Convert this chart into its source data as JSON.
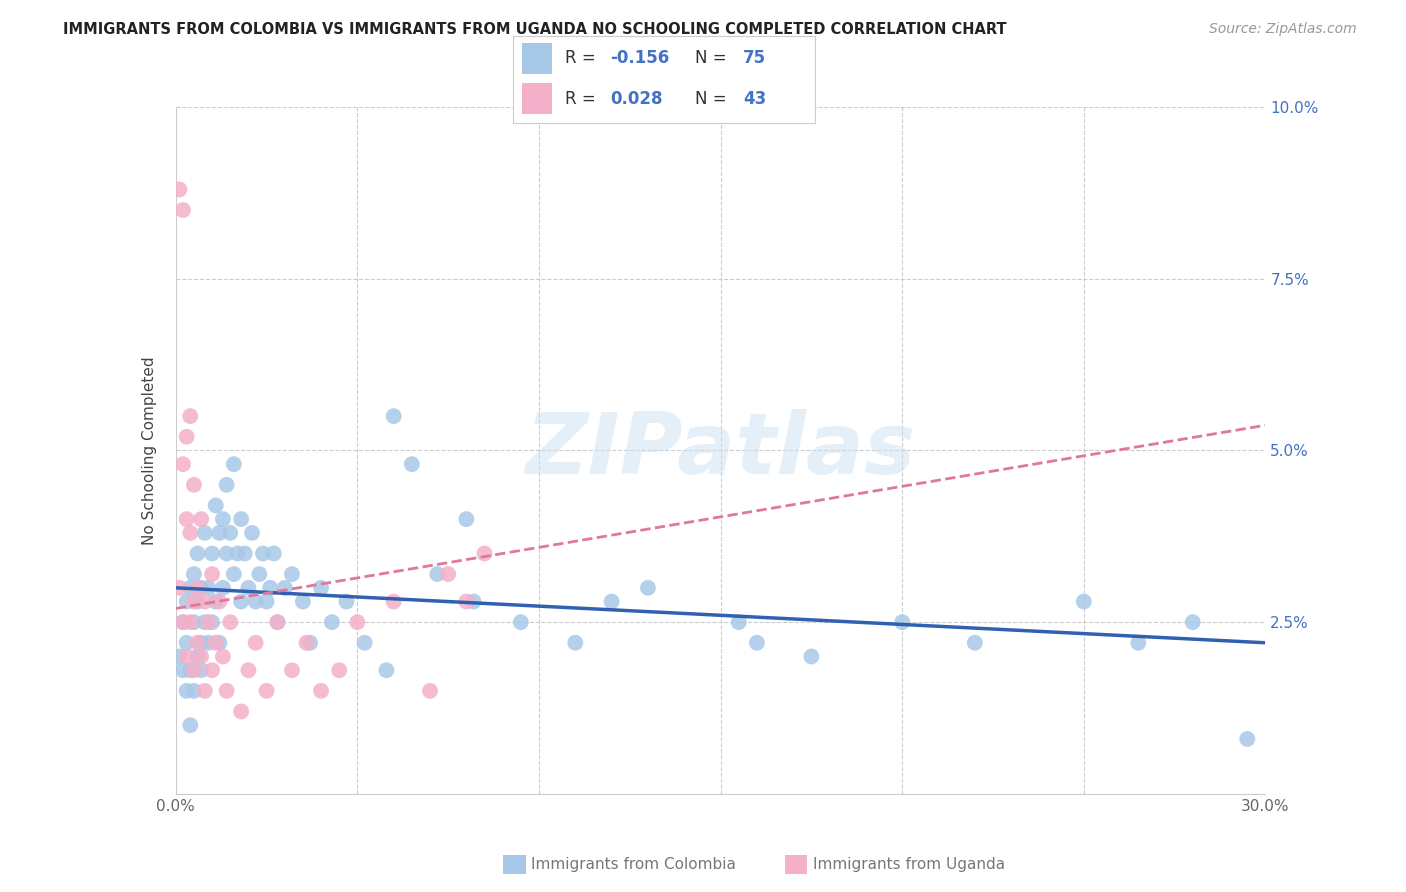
{
  "title": "IMMIGRANTS FROM COLOMBIA VS IMMIGRANTS FROM UGANDA NO SCHOOLING COMPLETED CORRELATION CHART",
  "source": "Source: ZipAtlas.com",
  "xlabel_colombia": "Immigrants from Colombia",
  "xlabel_uganda": "Immigrants from Uganda",
  "ylabel": "No Schooling Completed",
  "xlim": [
    0.0,
    0.3
  ],
  "ylim": [
    0.0,
    0.1
  ],
  "xticks": [
    0.0,
    0.05,
    0.1,
    0.15,
    0.2,
    0.25,
    0.3
  ],
  "yticks": [
    0.0,
    0.025,
    0.05,
    0.075,
    0.1
  ],
  "colombia_color": "#a8c8e8",
  "uganda_color": "#f4b0c8",
  "trend_colombia_color": "#3060b0",
  "trend_uganda_color": "#e07898",
  "colombia_R": -0.156,
  "colombia_N": 75,
  "uganda_R": 0.028,
  "uganda_N": 43,
  "watermark": "ZIPatlas",
  "right_axis_color": "#4472c4",
  "grid_color": "#cccccc",
  "colombia_x": [
    0.001,
    0.002,
    0.002,
    0.003,
    0.003,
    0.003,
    0.004,
    0.004,
    0.004,
    0.005,
    0.005,
    0.005,
    0.006,
    0.006,
    0.006,
    0.007,
    0.007,
    0.007,
    0.008,
    0.008,
    0.009,
    0.009,
    0.01,
    0.01,
    0.011,
    0.011,
    0.012,
    0.012,
    0.013,
    0.013,
    0.014,
    0.014,
    0.015,
    0.016,
    0.016,
    0.017,
    0.018,
    0.018,
    0.019,
    0.02,
    0.021,
    0.022,
    0.023,
    0.024,
    0.025,
    0.026,
    0.027,
    0.028,
    0.03,
    0.032,
    0.035,
    0.037,
    0.04,
    0.043,
    0.047,
    0.052,
    0.06,
    0.065,
    0.072,
    0.082,
    0.095,
    0.11,
    0.13,
    0.155,
    0.175,
    0.2,
    0.22,
    0.25,
    0.265,
    0.28,
    0.08,
    0.12,
    0.16,
    0.058,
    0.295
  ],
  "colombia_y": [
    0.02,
    0.018,
    0.025,
    0.015,
    0.022,
    0.028,
    0.01,
    0.03,
    0.018,
    0.025,
    0.032,
    0.015,
    0.028,
    0.02,
    0.035,
    0.018,
    0.03,
    0.022,
    0.038,
    0.025,
    0.022,
    0.03,
    0.035,
    0.025,
    0.042,
    0.028,
    0.038,
    0.022,
    0.04,
    0.03,
    0.035,
    0.045,
    0.038,
    0.032,
    0.048,
    0.035,
    0.04,
    0.028,
    0.035,
    0.03,
    0.038,
    0.028,
    0.032,
    0.035,
    0.028,
    0.03,
    0.035,
    0.025,
    0.03,
    0.032,
    0.028,
    0.022,
    0.03,
    0.025,
    0.028,
    0.022,
    0.055,
    0.048,
    0.032,
    0.028,
    0.025,
    0.022,
    0.03,
    0.025,
    0.02,
    0.025,
    0.022,
    0.028,
    0.022,
    0.025,
    0.04,
    0.028,
    0.022,
    0.018,
    0.008
  ],
  "uganda_x": [
    0.001,
    0.001,
    0.002,
    0.002,
    0.002,
    0.003,
    0.003,
    0.003,
    0.004,
    0.004,
    0.004,
    0.005,
    0.005,
    0.005,
    0.006,
    0.006,
    0.007,
    0.007,
    0.008,
    0.008,
    0.009,
    0.01,
    0.01,
    0.011,
    0.012,
    0.013,
    0.014,
    0.015,
    0.018,
    0.02,
    0.022,
    0.025,
    0.028,
    0.032,
    0.036,
    0.04,
    0.045,
    0.05,
    0.06,
    0.07,
    0.075,
    0.08,
    0.085
  ],
  "uganda_y": [
    0.088,
    0.03,
    0.085,
    0.025,
    0.048,
    0.052,
    0.04,
    0.02,
    0.038,
    0.025,
    0.055,
    0.045,
    0.028,
    0.018,
    0.03,
    0.022,
    0.04,
    0.02,
    0.028,
    0.015,
    0.025,
    0.032,
    0.018,
    0.022,
    0.028,
    0.02,
    0.015,
    0.025,
    0.012,
    0.018,
    0.022,
    0.015,
    0.025,
    0.018,
    0.022,
    0.015,
    0.018,
    0.025,
    0.028,
    0.015,
    0.032,
    0.028,
    0.035
  ]
}
